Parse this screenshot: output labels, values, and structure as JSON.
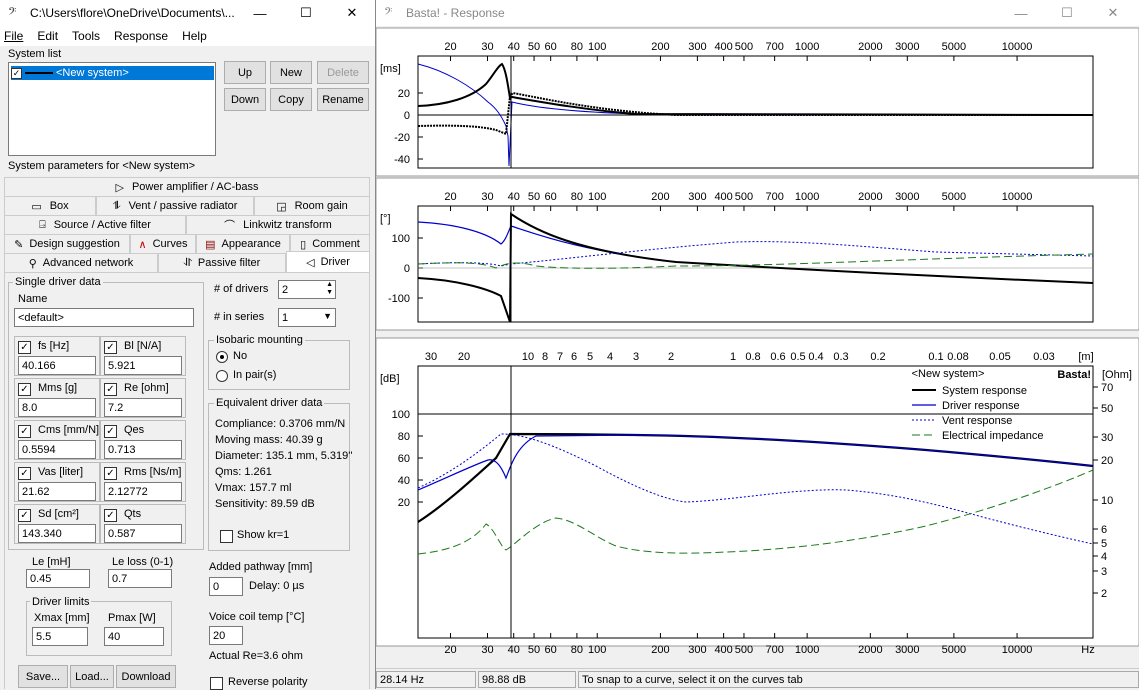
{
  "left_window": {
    "title": "C:\\Users\\flore\\OneDrive\\Documents\\...",
    "menu": [
      "File",
      "Edit",
      "Tools",
      "Response",
      "Help"
    ],
    "system_list_label": "System list",
    "system_item": "<New system>",
    "buttons": {
      "up": "Up",
      "new": "New",
      "delete": "Delete",
      "down": "Down",
      "copy": "Copy",
      "rename": "Rename"
    },
    "params_label": "System parameters for <New system>",
    "tabs_row1": [
      "Power amplifier / AC-bass"
    ],
    "tabs_row2": [
      "Box",
      "Vent / passive radiator",
      "Room gain"
    ],
    "tabs_row3": [
      "Source / Active filter",
      "Linkwitz transform"
    ],
    "tabs_row4": [
      "Design suggestion",
      "Curves",
      "Appearance",
      "Comment"
    ],
    "tabs_row5": [
      "Advanced network",
      "Passive filter",
      "Driver"
    ],
    "single_driver_label": "Single driver data",
    "name_label": "Name",
    "name_value": "<default>",
    "params": [
      {
        "label": "fs [Hz]",
        "value": "40.166"
      },
      {
        "label": "Bl [N/A]",
        "value": "5.921"
      },
      {
        "label": "Mms [g]",
        "value": "8.0"
      },
      {
        "label": "Re [ohm]",
        "value": "7.2"
      },
      {
        "label": "Cms [mm/N]",
        "value": "0.5594"
      },
      {
        "label": "Qes",
        "value": "0.713"
      },
      {
        "label": "Vas [liter]",
        "value": "21.62"
      },
      {
        "label": "Rms [Ns/m]",
        "value": "2.12772"
      },
      {
        "label": "Sd [cm²]",
        "value": "143.340"
      },
      {
        "label": "Qts",
        "value": "0.587"
      }
    ],
    "le_label": "Le [mH]",
    "le_value": "0.45",
    "le_loss_label": "Le loss (0-1)",
    "le_loss_value": "0.7",
    "driver_limits_label": "Driver limits",
    "xmax_label": "Xmax [mm]",
    "xmax_value": "5.5",
    "pmax_label": "Pmax [W]",
    "pmax_value": "40",
    "num_drivers_label": "# of drivers",
    "num_drivers_value": "2",
    "in_series_label": "# in series",
    "in_series_value": "1",
    "isobaric_label": "Isobaric mounting",
    "isobaric_no": "No",
    "isobaric_pairs": "In pair(s)",
    "equiv_label": "Equivalent driver data",
    "equiv_lines": [
      "Compliance: 0.3706 mm/N",
      "Moving mass: 40.39 g",
      "Diameter: 135.1 mm, 5.319''",
      "Qms: 1.261",
      "Vmax: 157.7 ml",
      "Sensitivity: 89.59 dB"
    ],
    "show_kr": "Show kr=1",
    "added_path_label": "Added pathway [mm]",
    "added_path_value": "0",
    "delay_text": "Delay: 0 µs",
    "voice_coil_label": "Voice coil temp [°C]",
    "voice_coil_value": "20",
    "actual_re": "Actual Re=3.6 ohm",
    "reverse_polarity": "Reverse polarity",
    "bottom_buttons": [
      "Save...",
      "Load...",
      "Download"
    ]
  },
  "right_window": {
    "title": "Basta! - Response",
    "freq_ticks": [
      "20",
      "30",
      "40",
      "50",
      "60",
      "80",
      "100",
      "200",
      "300",
      "400",
      "500",
      "700",
      "1000",
      "2000",
      "3000",
      "5000",
      "10000"
    ],
    "freq_ticks_bottom": [
      "20",
      "30",
      "40",
      "50",
      "60",
      "80",
      "100",
      "200",
      "300",
      "400",
      "500",
      "700",
      "1000",
      "2000",
      "3000",
      "5000",
      "10000",
      "Hz"
    ],
    "wavelength_ticks": [
      "30",
      "20",
      "10",
      "8",
      "7",
      "6",
      "5",
      "4",
      "3",
      "2",
      "1",
      "0.8",
      "0.6",
      "0.5",
      "0.4",
      "0.3",
      "0.2",
      "0.1",
      "0.08",
      "0.05",
      "0.03",
      "[m]"
    ],
    "group_delay_unit": "[ms]",
    "group_delay_ticks": [
      "20",
      "0",
      "-20",
      "-40"
    ],
    "phase_unit": "[°]",
    "phase_ticks": [
      "100",
      "0",
      "-100"
    ],
    "spl_unit": "[dB]",
    "spl_ticks": [
      "100",
      "80",
      "60",
      "40",
      "20"
    ],
    "ohm_unit": "[Ohm]",
    "ohm_ticks": [
      "70",
      "50",
      "30",
      "20",
      "10",
      "6",
      "5",
      "4",
      "3",
      "2"
    ],
    "watermark": "Basta!",
    "legend_title": "<New system>",
    "legend": [
      {
        "name": "System response",
        "color": "#000000"
      },
      {
        "name": "Driver response",
        "color": "#0000cc"
      },
      {
        "name": "Vent response",
        "color": "#0000cc"
      },
      {
        "name": "Electrical impedance",
        "color": "#1a7a1a"
      }
    ],
    "status": [
      "28.14 Hz",
      "98.88 dB",
      "To snap to a curve, select it on the curves tab"
    ]
  }
}
